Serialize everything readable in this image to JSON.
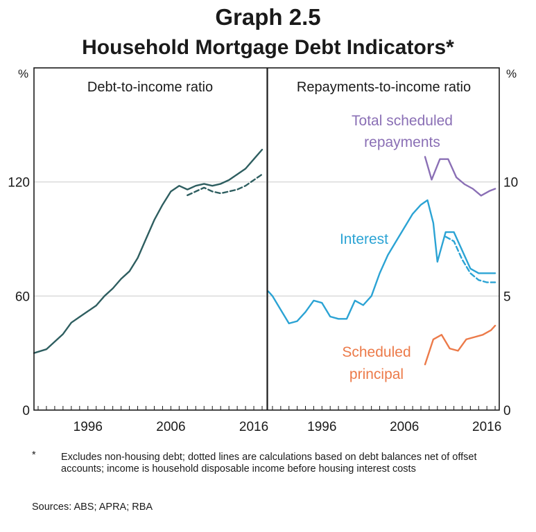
{
  "title": "Graph 2.5",
  "subtitle": "Household Mortgage Debt Indicators*",
  "footnote": {
    "marker": "*",
    "text": "Excludes non-housing debt; dotted lines are calculations based on debt balances net of offset accounts; income is household disposable income before housing interest costs"
  },
  "sources": "Sources:   ABS; APRA; RBA",
  "colors": {
    "debt": "#2e5e60",
    "interest": "#2ba3d4",
    "principal": "#ec7a49",
    "total": "#8a6fb5",
    "grid": "#d0d0d0",
    "axis": "#1a1a1a"
  },
  "chart_data": [
    {
      "type": "line",
      "title": "Debt-to-income ratio",
      "y_unit": "%",
      "ylim": [
        0,
        180
      ],
      "yticks": [
        "0",
        "60",
        "120"
      ],
      "xlim": [
        1989.5,
        2017.5
      ],
      "xticks": [
        "1996",
        "2006",
        "2016"
      ],
      "grid": true,
      "series": [
        {
          "style": "solid",
          "x": [
            1989.5,
            1991,
            1992,
            1993,
            1994,
            1995,
            1996,
            1997,
            1998,
            1999,
            2000,
            2001,
            2002,
            2003,
            2004,
            2005,
            2006,
            2007,
            2008,
            2009,
            2010,
            2011,
            2012,
            2013,
            2014,
            2015,
            2016,
            2017
          ],
          "values": [
            30,
            32,
            36,
            40,
            46,
            49,
            52,
            55,
            60,
            64,
            69,
            73,
            80,
            90,
            100,
            108,
            115,
            118,
            116,
            118,
            119,
            118,
            119,
            121,
            124,
            127,
            132,
            137
          ]
        },
        {
          "style": "dashed",
          "x": [
            2008,
            2009,
            2010,
            2011,
            2012,
            2013,
            2014,
            2015,
            2016,
            2017
          ],
          "values": [
            113,
            115,
            117,
            115,
            114,
            115,
            116,
            118,
            121,
            124
          ]
        }
      ]
    },
    {
      "type": "line",
      "title": "Repayments-to-income ratio",
      "y_unit": "%",
      "ylim": [
        0,
        15
      ],
      "yticks": [
        "0",
        "5",
        "10"
      ],
      "xlim": [
        1989.5,
        2017.5
      ],
      "xticks": [
        "1996",
        "2006",
        "2016"
      ],
      "grid": true,
      "series": [
        {
          "name": "Interest",
          "style": "solid",
          "x": [
            1989.5,
            1990,
            1991,
            1992,
            1993,
            1994,
            1995,
            1996,
            1997,
            1998,
            1999,
            2000,
            2001,
            2002,
            2003,
            2004,
            2005,
            2006,
            2007,
            2008,
            2008.8,
            2009.5,
            2010,
            2011,
            2012,
            2013,
            2014,
            2015,
            2016,
            2017
          ],
          "values": [
            5.2,
            5.0,
            4.4,
            3.8,
            3.9,
            4.3,
            4.8,
            4.7,
            4.1,
            4.0,
            4.0,
            4.8,
            4.6,
            5.0,
            6.0,
            6.8,
            7.4,
            8.0,
            8.6,
            9.0,
            9.2,
            8.2,
            6.5,
            7.8,
            7.8,
            7.0,
            6.2,
            6.0,
            6.0,
            6.0
          ]
        },
        {
          "style": "dashed",
          "x": [
            2011,
            2012,
            2013,
            2014,
            2015,
            2016,
            2017
          ],
          "values": [
            7.6,
            7.4,
            6.6,
            6.0,
            5.7,
            5.6,
            5.6
          ]
        },
        {
          "name": "Scheduled principal",
          "style": "solid",
          "x": [
            2008.5,
            2009.5,
            2010.5,
            2011.5,
            2012.5,
            2013.5,
            2014.5,
            2015.5,
            2016.5,
            2017
          ],
          "values": [
            2.0,
            3.1,
            3.3,
            2.7,
            2.6,
            3.1,
            3.2,
            3.3,
            3.5,
            3.7
          ]
        },
        {
          "name": "Total scheduled repayments",
          "style": "solid",
          "x": [
            2008.5,
            2009.3,
            2010.3,
            2011.3,
            2012.3,
            2013.3,
            2014.3,
            2015.3,
            2016.3,
            2017
          ],
          "values": [
            11.1,
            10.1,
            11.0,
            11.0,
            10.2,
            9.9,
            9.7,
            9.4,
            9.6,
            9.7
          ]
        }
      ]
    }
  ]
}
